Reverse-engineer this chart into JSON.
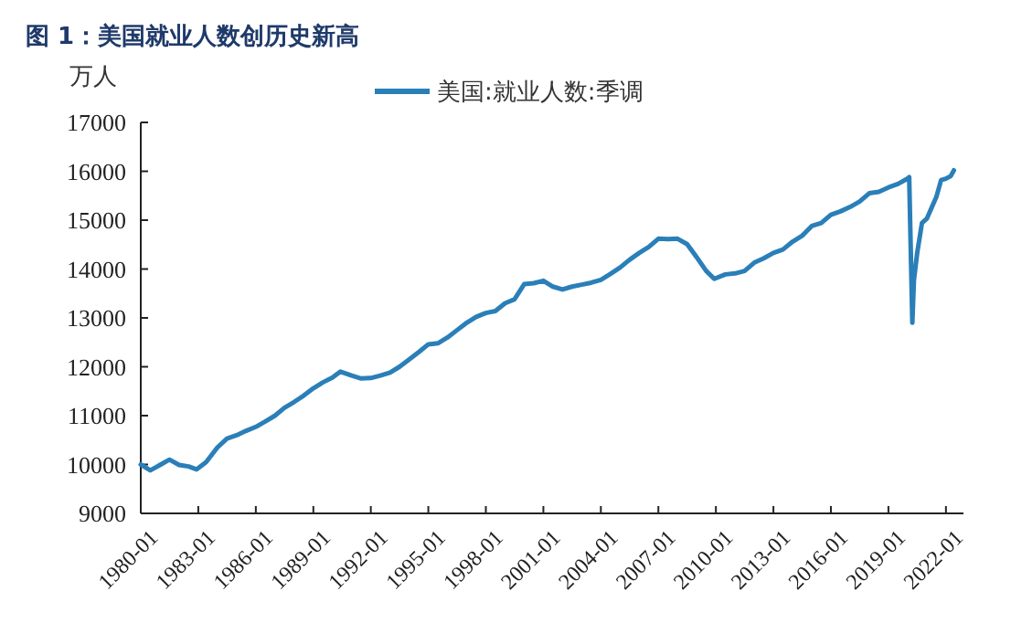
{
  "chart_data": {
    "type": "line",
    "title": "图 1：美国就业人数创历史新高",
    "ylabel": "万人",
    "legend": "top",
    "grid": false,
    "marker": "none",
    "line_style": "solid",
    "xlim": [
      "1980-01",
      "2022-12"
    ],
    "ylim": [
      9000,
      17000
    ],
    "xticks": [
      "1980-01",
      "1983-01",
      "1986-01",
      "1989-01",
      "1992-01",
      "1995-01",
      "1998-01",
      "2001-01",
      "2004-01",
      "2007-01",
      "2010-01",
      "2013-01",
      "2016-01",
      "2019-01",
      "2022-01"
    ],
    "yticks": [
      9000,
      10000,
      11000,
      12000,
      13000,
      14000,
      15000,
      16000,
      17000
    ],
    "x": [
      "1980-01",
      "1980-07",
      "1981-01",
      "1981-07",
      "1982-01",
      "1982-07",
      "1982-12",
      "1983-06",
      "1984-01",
      "1984-07",
      "1985-01",
      "1985-07",
      "1986-01",
      "1986-07",
      "1987-01",
      "1987-07",
      "1988-01",
      "1988-07",
      "1989-01",
      "1989-07",
      "1990-01",
      "1990-06",
      "1991-01",
      "1991-07",
      "1992-01",
      "1992-07",
      "1993-01",
      "1993-07",
      "1994-01",
      "1994-07",
      "1995-01",
      "1995-07",
      "1996-01",
      "1996-07",
      "1997-01",
      "1997-07",
      "1998-01",
      "1998-07",
      "1999-01",
      "1999-07",
      "2000-01",
      "2000-07",
      "2001-01",
      "2001-07",
      "2002-01",
      "2002-07",
      "2003-01",
      "2003-07",
      "2004-01",
      "2004-07",
      "2005-01",
      "2005-07",
      "2006-01",
      "2006-07",
      "2007-01",
      "2007-07",
      "2008-01",
      "2008-07",
      "2009-01",
      "2009-07",
      "2009-12",
      "2010-07",
      "2011-01",
      "2011-07",
      "2012-01",
      "2012-07",
      "2013-01",
      "2013-07",
      "2014-01",
      "2014-07",
      "2015-01",
      "2015-07",
      "2016-01",
      "2016-07",
      "2017-01",
      "2017-07",
      "2018-01",
      "2018-07",
      "2019-01",
      "2019-07",
      "2020-01",
      "2020-02",
      "2020-04",
      "2020-05",
      "2020-07",
      "2020-10",
      "2021-01",
      "2021-07",
      "2021-10",
      "2022-01",
      "2022-04",
      "2022-06"
    ],
    "series": [
      {
        "name": "美国:就业人数:季调",
        "color": "#2a7fb8",
        "values": [
          10000,
          9880,
          9990,
          10100,
          9990,
          9960,
          9900,
          10050,
          10350,
          10530,
          10600,
          10690,
          10770,
          10880,
          11000,
          11160,
          11280,
          11410,
          11560,
          11680,
          11780,
          11900,
          11820,
          11760,
          11770,
          11820,
          11880,
          12000,
          12150,
          12300,
          12460,
          12480,
          12600,
          12750,
          12900,
          13020,
          13100,
          13140,
          13300,
          13380,
          13690,
          13710,
          13760,
          13640,
          13580,
          13640,
          13680,
          13720,
          13780,
          13900,
          14030,
          14190,
          14330,
          14450,
          14620,
          14610,
          14620,
          14510,
          14240,
          13960,
          13800,
          13890,
          13910,
          13960,
          14130,
          14220,
          14330,
          14400,
          14560,
          14680,
          14880,
          14940,
          15110,
          15180,
          15270,
          15380,
          15550,
          15580,
          15670,
          15740,
          15850,
          15880,
          12900,
          13770,
          14320,
          14940,
          15030,
          15470,
          15820,
          15850,
          15900,
          16020
        ]
      }
    ]
  }
}
